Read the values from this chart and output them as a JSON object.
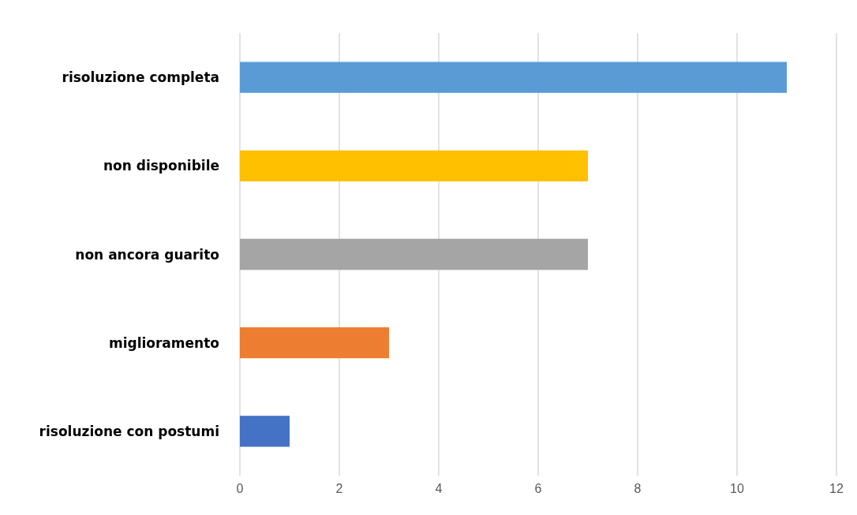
{
  "chart_data": {
    "type": "bar",
    "orientation": "horizontal",
    "categories": [
      "risoluzione completa",
      "non disponibile",
      "non ancora guarito",
      "miglioramento",
      "risoluzione con postumi"
    ],
    "values": [
      11,
      7,
      7,
      3,
      1
    ],
    "colors": [
      "#5b9bd5",
      "#ffc000",
      "#a5a5a5",
      "#ed7d31",
      "#4472c4"
    ],
    "xlim": [
      0,
      12
    ],
    "xticks": [
      0,
      2,
      4,
      6,
      8,
      10,
      12
    ],
    "grid": "x"
  }
}
